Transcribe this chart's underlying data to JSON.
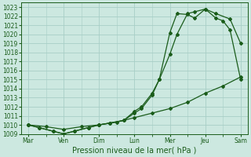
{
  "xlabel": "Pression niveau de la mer( hPa )",
  "xtick_labels": [
    "Mar",
    "Ven",
    "Dim",
    "Lun",
    "Mer",
    "Jeu",
    "Sam"
  ],
  "xtick_positions": [
    0,
    1,
    2,
    3,
    4,
    5,
    6
  ],
  "ylim": [
    1009,
    1023.5
  ],
  "yticks": [
    1009,
    1010,
    1011,
    1012,
    1013,
    1014,
    1015,
    1016,
    1017,
    1018,
    1019,
    1020,
    1021,
    1022,
    1023
  ],
  "bg_color": "#cce8e0",
  "grid_color": "#a8cec6",
  "line_color": "#1a5c1a",
  "line1_x": [
    0,
    0.3,
    0.7,
    1.0,
    1.3,
    1.7,
    2.0,
    2.3,
    2.7,
    3.0,
    3.2,
    3.5,
    3.7,
    4.0,
    4.2,
    4.5,
    4.7,
    5.0,
    5.3,
    5.7,
    6.0
  ],
  "line1_y": [
    1010.0,
    1009.7,
    1009.3,
    1009.0,
    1009.3,
    1009.7,
    1010.0,
    1010.2,
    1010.5,
    1011.5,
    1012.0,
    1013.5,
    1015.0,
    1017.8,
    1020.0,
    1022.3,
    1022.5,
    1022.8,
    1022.3,
    1021.7,
    1019.0
  ],
  "line2_x": [
    0,
    0.3,
    0.7,
    1.0,
    1.3,
    1.7,
    2.0,
    2.3,
    2.7,
    3.0,
    3.2,
    3.5,
    3.7,
    4.0,
    4.2,
    4.5,
    4.7,
    5.0,
    5.3,
    5.5,
    5.7,
    6.0
  ],
  "line2_y": [
    1010.0,
    1009.7,
    1009.3,
    1009.0,
    1009.3,
    1009.7,
    1010.0,
    1010.2,
    1010.5,
    1011.3,
    1011.8,
    1013.3,
    1015.0,
    1020.2,
    1022.3,
    1022.2,
    1021.8,
    1022.8,
    1021.8,
    1021.5,
    1020.5,
    1015.0
  ],
  "line3_x": [
    0,
    0.5,
    1.0,
    1.5,
    2.0,
    2.5,
    3.0,
    3.5,
    4.0,
    4.5,
    5.0,
    5.5,
    6.0
  ],
  "line3_y": [
    1010.0,
    1009.8,
    1009.5,
    1009.8,
    1010.0,
    1010.3,
    1010.8,
    1011.3,
    1011.8,
    1012.5,
    1013.5,
    1014.3,
    1015.3
  ],
  "xlabel_fontsize": 7,
  "tick_fontsize": 5.5
}
